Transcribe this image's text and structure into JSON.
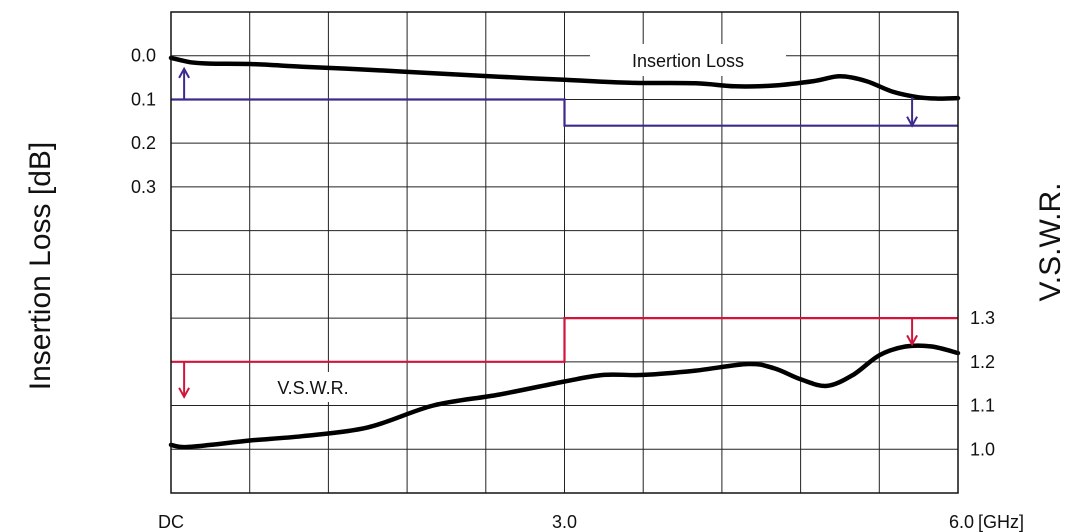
{
  "chart_data": {
    "type": "line",
    "xlim": [
      0,
      6.0
    ],
    "x_tick_labels": [
      {
        "x": 0,
        "label": "DC"
      },
      {
        "x": 3.0,
        "label": "3.0"
      },
      {
        "x": 6.0,
        "label": "6.0"
      }
    ],
    "x_unit": "[GHz]",
    "grid": true,
    "left_axis": {
      "title": "Insertion Loss [dB]",
      "inverted": true,
      "ticks": [
        "0.0",
        "0.1",
        "0.2",
        "0.3"
      ],
      "tick_values": [
        0.0,
        0.1,
        0.2,
        0.3
      ]
    },
    "right_axis": {
      "title": "V.S.W.R.",
      "ticks": [
        "1.0",
        "1.1",
        "1.2",
        "1.3"
      ],
      "tick_values": [
        1.0,
        1.1,
        1.2,
        1.3
      ]
    },
    "annotations": {
      "insertion_loss": "Insertion Loss",
      "vswr": "V.S.W.R."
    },
    "series": [
      {
        "axis": "left",
        "kind": "measured",
        "color": "#000000",
        "x": [
          0,
          0.15,
          0.3,
          0.6,
          1.0,
          1.5,
          2.0,
          2.5,
          3.0,
          3.5,
          4.0,
          4.3,
          4.6,
          4.9,
          5.1,
          5.3,
          5.5,
          5.7,
          5.85,
          6.0
        ],
        "y": [
          0.005,
          0.015,
          0.018,
          0.019,
          0.025,
          0.032,
          0.04,
          0.048,
          0.055,
          0.062,
          0.063,
          0.07,
          0.068,
          0.058,
          0.047,
          0.058,
          0.082,
          0.095,
          0.098,
          0.097
        ]
      },
      {
        "axis": "left",
        "kind": "spec-limit",
        "color": "#3d2a8c",
        "x": [
          0,
          3.0,
          3.0,
          6.0
        ],
        "y": [
          0.1,
          0.1,
          0.16,
          0.16
        ]
      },
      {
        "axis": "right",
        "kind": "measured",
        "color": "#000000",
        "x": [
          0,
          0.1,
          0.3,
          0.6,
          1.0,
          1.5,
          2.0,
          2.5,
          3.0,
          3.3,
          3.6,
          4.0,
          4.4,
          4.6,
          4.8,
          5.0,
          5.2,
          5.4,
          5.6,
          5.8,
          6.0
        ],
        "y": [
          1.01,
          1.005,
          1.01,
          1.02,
          1.03,
          1.05,
          1.1,
          1.125,
          1.155,
          1.17,
          1.17,
          1.18,
          1.195,
          1.185,
          1.16,
          1.145,
          1.17,
          1.215,
          1.235,
          1.235,
          1.22
        ]
      },
      {
        "axis": "right",
        "kind": "spec-limit",
        "color": "#d0143c",
        "x": [
          0,
          3.0,
          3.0,
          6.0
        ],
        "y": [
          1.2,
          1.2,
          1.3,
          1.3
        ]
      }
    ],
    "arrows": [
      {
        "series": "insertion-loss-limit",
        "x": 0.1,
        "from": 0.1,
        "to": 0.03,
        "color": "#3d2a8c"
      },
      {
        "series": "insertion-loss-limit",
        "x": 5.65,
        "from": 0.095,
        "to": 0.16,
        "color": "#3d2a8c"
      },
      {
        "series": "vswr-limit",
        "x": 0.1,
        "from": 1.2,
        "to": 1.12,
        "color": "#d0143c"
      },
      {
        "series": "vswr-limit",
        "x": 5.65,
        "from": 1.3,
        "to": 1.24,
        "color": "#d0143c"
      }
    ]
  }
}
